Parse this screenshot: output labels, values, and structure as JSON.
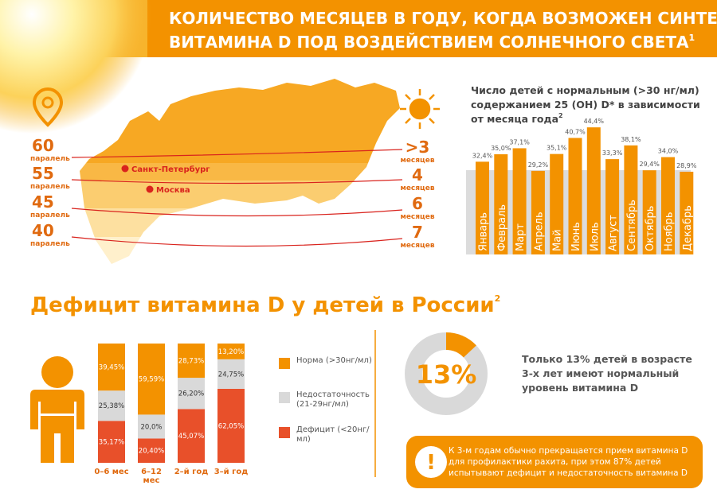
{
  "header": {
    "title_lines": [
      "КОЛИЧЕСТВО МЕСЯЦЕВ В ГОДУ, КОГДА ВОЗМОЖЕН СИНТЕЗ",
      "ВИТАМИНА D ПОД ВОЗДЕЙСТВИЕМ СОЛНЕЧНОГО СВЕТА"
    ],
    "title_note": "1"
  },
  "map": {
    "parallels": [
      {
        "number": "60",
        "label": "паралель"
      },
      {
        "number": "55",
        "label": "паралель"
      },
      {
        "number": "45",
        "label": "паралель"
      },
      {
        "number": "40",
        "label": "паралель"
      }
    ],
    "months": [
      {
        "number": ">3",
        "label": "месяцев"
      },
      {
        "number": "4",
        "label": "месяцев"
      },
      {
        "number": "6",
        "label": "месяцев"
      },
      {
        "number": "7",
        "label": "месяцев"
      }
    ],
    "cities": [
      "Санкт-Петербург",
      "Москва"
    ]
  },
  "section_title": "Дефицит витамина D у детей в России",
  "section_note": "2",
  "chart_data": [
    {
      "type": "bar",
      "title_lines": [
        "Число детей с нормальным (>30 нг/мл)",
        "содержанием 25 (ОН) D* в зависимости",
        "от месяца года"
      ],
      "title_note": "2",
      "categories": [
        "Январь",
        "Февраль",
        "Март",
        "Апрель",
        "Май",
        "Июнь",
        "Июль",
        "Август",
        "Сентябрь",
        "Октябрь",
        "Ноябрь",
        "Декабрь"
      ],
      "values": [
        32.4,
        35.0,
        37.1,
        29.2,
        35.1,
        40.7,
        44.4,
        33.3,
        38.1,
        29.4,
        34.0,
        28.9
      ],
      "value_labels": [
        "32,4%",
        "35,0%",
        "37,1%",
        "29,2%",
        "35,1%",
        "40,7%",
        "44,4%",
        "33,3%",
        "38,1%",
        "29,4%",
        "34,0%",
        "28,9%"
      ],
      "color": "#f39200",
      "ylim": [
        0,
        45
      ]
    },
    {
      "type": "stacked_bar",
      "categories": [
        "0–6 мес",
        "6–12 мес",
        "2–й год",
        "3–й год"
      ],
      "series": [
        {
          "name": "Норма (>30нг/мл)",
          "color": "#f39200",
          "values": [
            39.45,
            59.59,
            28.73,
            13.2
          ],
          "value_labels": [
            "39,45%",
            "59,59%",
            "28,73%",
            "13,20%"
          ]
        },
        {
          "name": "Недостаточность (21-29нг/мл)",
          "color": "#d9d9d9",
          "values": [
            25.38,
            20.0,
            26.2,
            24.75
          ],
          "value_labels": [
            "25,38%",
            "20,0%",
            "26,20%",
            "24,75%"
          ]
        },
        {
          "name": "Дефицит (<20нг/мл)",
          "color": "#e8502a",
          "values": [
            35.17,
            20.4,
            45.07,
            62.05
          ],
          "value_labels": [
            "35,17%",
            "20,40%",
            "45,07%",
            "62,05%"
          ]
        }
      ],
      "ylim": [
        0,
        100
      ]
    },
    {
      "type": "donut",
      "values": [
        13
      ],
      "value_labels": [
        "13%"
      ],
      "color": "#f39200",
      "text_lines": [
        "Только 13% детей в возрасте",
        "3-х лет имеют нормальный",
        "уровень витамина D"
      ]
    }
  ],
  "note_lines": [
    "К 3-м годам обычно прекращается прием витамина D",
    "для профилактики рахита, при этом 87% детей",
    "испытывают дефицит и недостаточность витамина D"
  ]
}
